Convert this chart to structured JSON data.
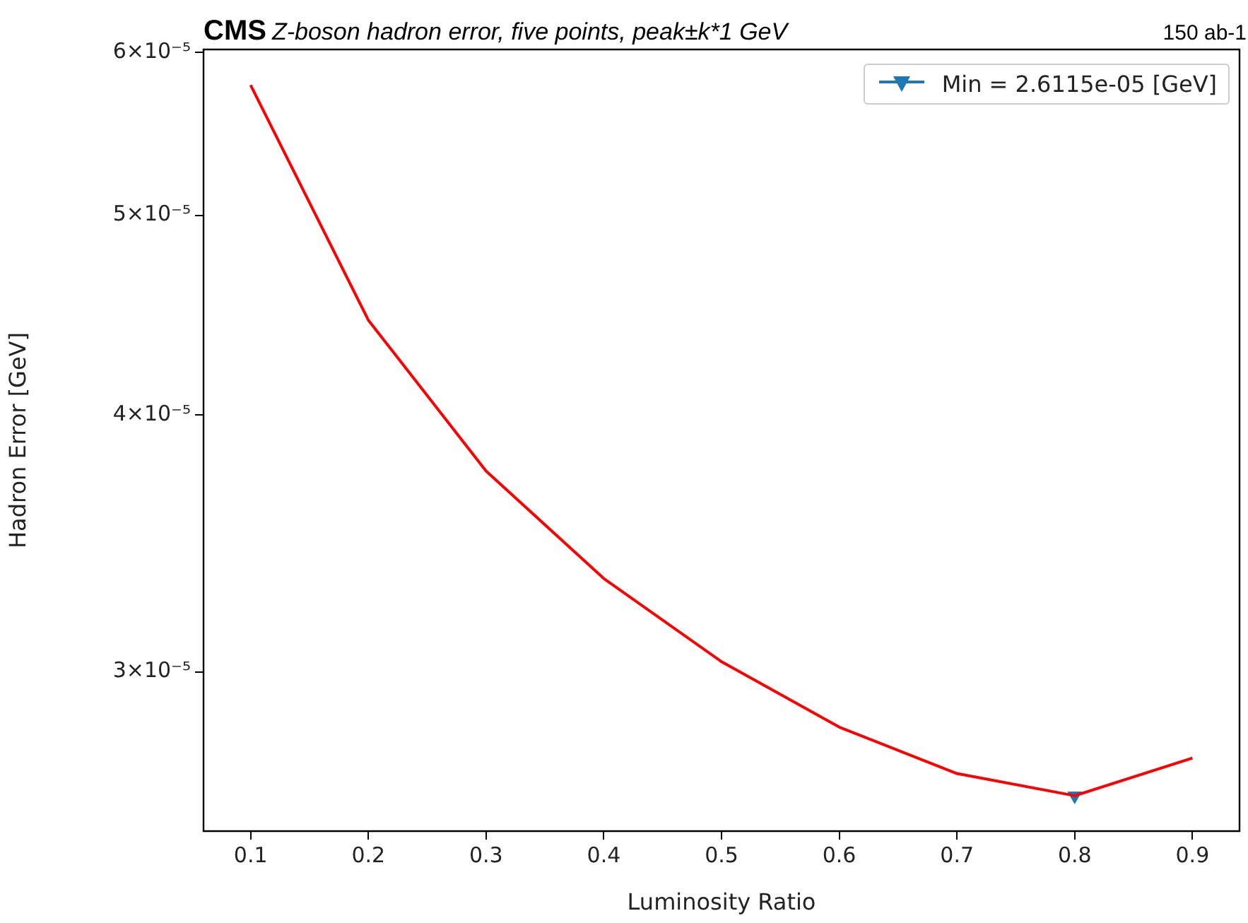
{
  "chart_data": {
    "type": "line",
    "title": "CMS",
    "subtitle": "Z-boson hadron error, five points, peak±k*1 GeV",
    "annotations": [
      "150 ab-1"
    ],
    "xlabel": "Luminosity Ratio",
    "ylabel": "Hadron Error [GeV]",
    "log": "y",
    "grid": false,
    "legend": "top right",
    "x": [
      0.1,
      0.2,
      0.3,
      0.4,
      0.5,
      0.6,
      0.7,
      0.8,
      0.9
    ],
    "xlim": [
      0.06,
      0.94
    ],
    "xticks": [
      0.1,
      0.2,
      0.3,
      0.4,
      0.5,
      0.6,
      0.7,
      0.8,
      0.9
    ],
    "ylim": [
      2.51e-05,
      6.02e-05
    ],
    "yticks": [
      {
        "value": 3e-05,
        "label": "3×10⁻⁵"
      },
      {
        "value": 4e-05,
        "label": "4×10⁻⁵"
      },
      {
        "value": 5e-05,
        "label": "5×10⁻⁵"
      },
      {
        "value": 6e-05,
        "label": "6×10⁻⁵"
      }
    ],
    "series": [
      {
        "color": "#ff0000",
        "marker": "none",
        "values": [
          5.785e-05,
          4.447e-05,
          3.756e-05,
          3.33e-05,
          3.034e-05,
          2.82e-05,
          2.677e-05,
          2.6115e-05,
          2.724e-05
        ]
      },
      {
        "name": "Min = 2.6115e-05 [GeV]",
        "color": "#1f77b4",
        "marker": "triangle",
        "x": [
          0.8
        ],
        "values": [
          2.6115e-05
        ]
      }
    ]
  }
}
